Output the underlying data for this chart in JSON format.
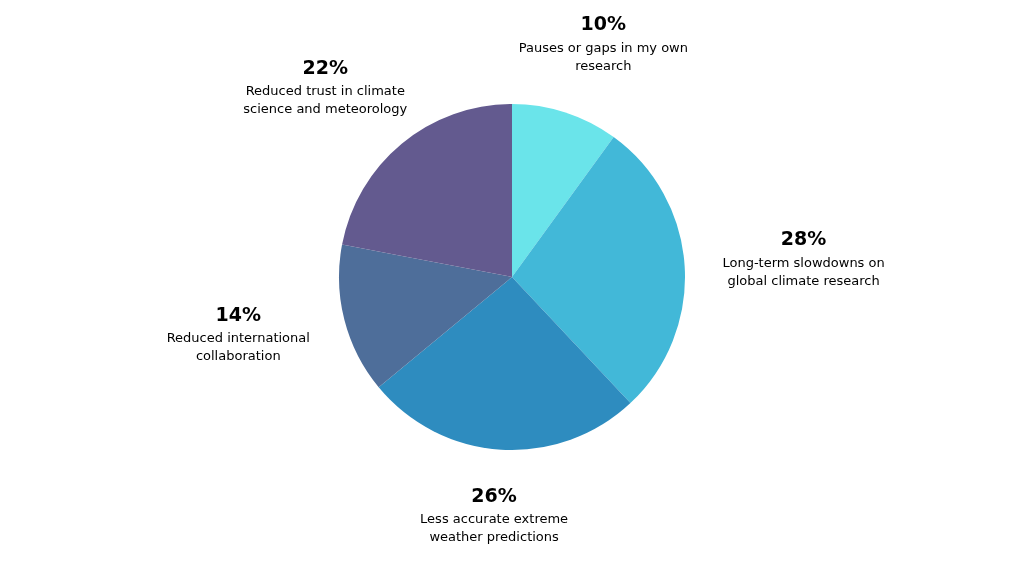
{
  "chart_data": {
    "type": "pie",
    "categories": [
      "Pauses or gaps in my own research",
      "Long-term slowdowns on global climate research",
      "Less accurate extreme weather predictions",
      "Reduced international collaboration",
      "Reduced trust in climate science and meteorology"
    ],
    "values": [
      10,
      28,
      26,
      14,
      22
    ],
    "value_labels": [
      "10%",
      "28%",
      "26%",
      "14%",
      "22%"
    ],
    "colors": [
      "#6ae4ea",
      "#42b8d8",
      "#2e8cbf",
      "#4e6e9a",
      "#635a8f"
    ],
    "legend": false
  }
}
